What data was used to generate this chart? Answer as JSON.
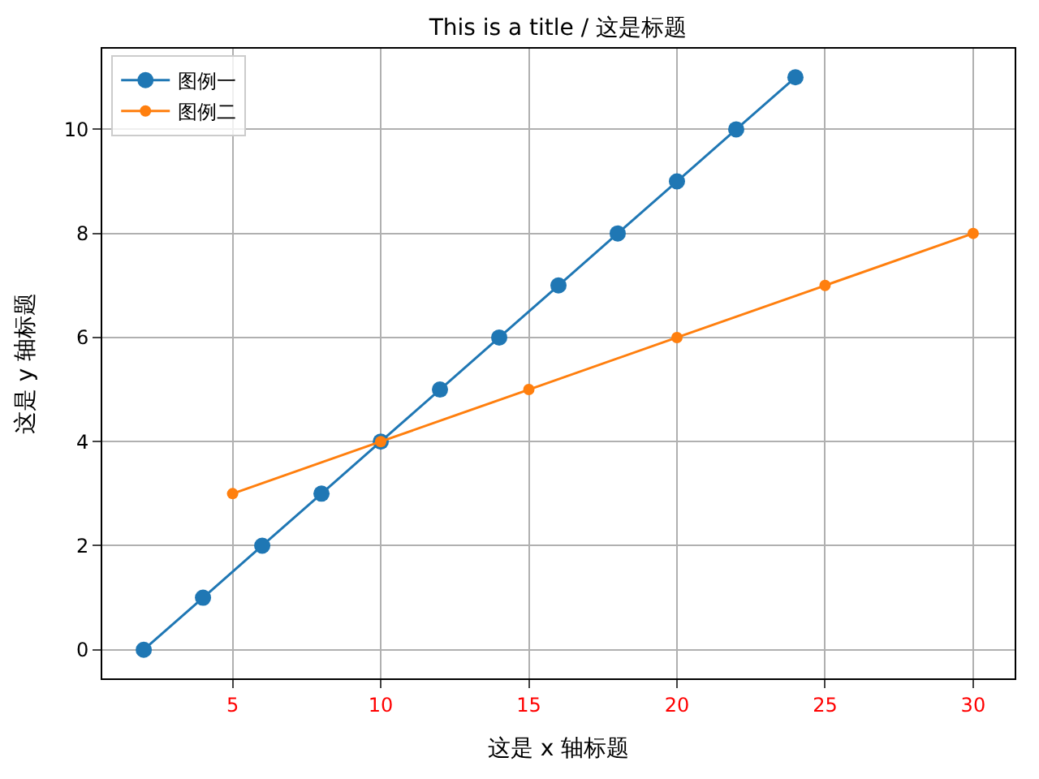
{
  "chart_data": {
    "type": "line",
    "title": "This is a title / 这是标题",
    "xlabel": "这是 x 轴标题",
    "ylabel": "这是 y 轴标题",
    "series": [
      {
        "name": "图例一",
        "color": "#1f77b4",
        "x": [
          2,
          4,
          6,
          8,
          10,
          12,
          14,
          16,
          18,
          20,
          22,
          24
        ],
        "values": [
          0,
          1,
          2,
          3,
          4,
          5,
          6,
          7,
          8,
          9,
          10,
          11
        ]
      },
      {
        "name": "图例二",
        "color": "#ff7f0e",
        "x": [
          5,
          10,
          15,
          20,
          25,
          30
        ],
        "values": [
          3,
          4,
          5,
          6,
          7,
          8
        ]
      }
    ],
    "xlim": [
      0.6,
      31.4
    ],
    "xticks": [
      5,
      10,
      15,
      20,
      25,
      30
    ],
    "ylim": [
      -0.55,
      11.55
    ],
    "yticks": [
      0,
      2,
      4,
      6,
      8,
      10
    ],
    "grid": true,
    "legend": "top left",
    "marker": "circle",
    "line_style": "solid"
  }
}
